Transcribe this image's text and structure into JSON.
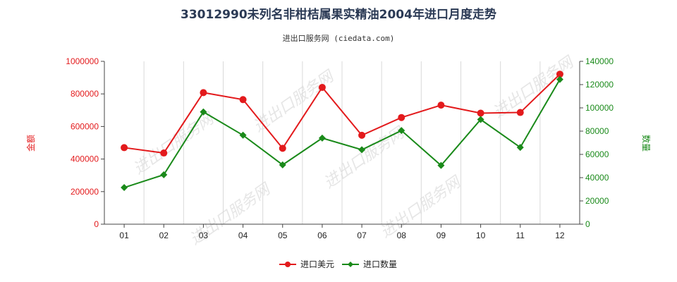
{
  "chart_data": {
    "type": "line",
    "title": "33012990未列名非柑桔属果实精油2004年进口月度走势",
    "subtitle": "进出口服务网 (ciedata.com)",
    "categories": [
      "01",
      "02",
      "03",
      "04",
      "05",
      "06",
      "07",
      "08",
      "09",
      "10",
      "11",
      "12"
    ],
    "ylabel_left": "金额",
    "ylabel_right": "数量",
    "ylim_left": [
      0,
      1000000
    ],
    "ylim_right": [
      0,
      140000
    ],
    "yticks_left": [
      "0",
      "200000",
      "400000",
      "600000",
      "800000",
      "1000000"
    ],
    "yticks_right": [
      "0",
      "20000",
      "40000",
      "60000",
      "80000",
      "100000",
      "120000",
      "140000"
    ],
    "grid": "vertical",
    "legend_position": "bottom-center",
    "watermark": "进出口服务网",
    "series": [
      {
        "name": "进口美元",
        "axis": "left",
        "color": "#e31a1c",
        "marker": "circle",
        "values": [
          470000,
          437000,
          808000,
          765000,
          466000,
          840000,
          546000,
          655000,
          731000,
          682000,
          686000,
          921000
        ]
      },
      {
        "name": "进口数量",
        "axis": "right",
        "color": "#1a8a1a",
        "marker": "diamond",
        "values": [
          31500,
          42500,
          96500,
          76500,
          51000,
          74000,
          64000,
          80500,
          50500,
          90000,
          66000,
          124500
        ]
      }
    ]
  }
}
